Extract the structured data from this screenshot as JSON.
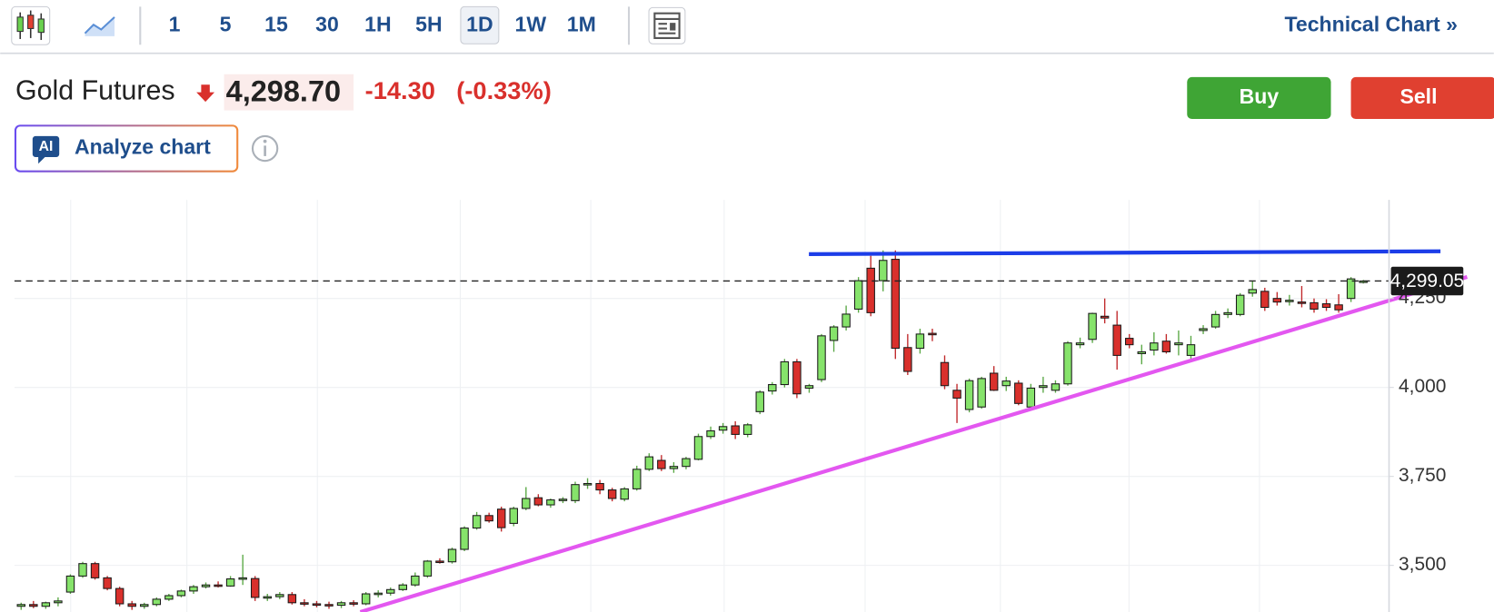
{
  "toolbar": {
    "intervals": [
      "1",
      "5",
      "15",
      "30",
      "1H",
      "5H",
      "1D",
      "1W",
      "1M"
    ],
    "link": "Technical Chart »"
  },
  "instrument": {
    "name": "Gold Futures",
    "price": "4,298.70",
    "change": "-14.30",
    "change_percent": "(-0.33%)"
  },
  "buttons": [
    "Buy",
    "Sell"
  ],
  "ai_button": {
    "badge": "AI",
    "label": "Analyze chart"
  },
  "chart_data": {
    "type": "candlestick",
    "ylim": [
      3369,
      4527
    ],
    "yticks": [
      {
        "value": 3500,
        "label": "3,500"
      },
      {
        "value": 3750,
        "label": "3,750"
      },
      {
        "value": 4000,
        "label": "4,000"
      },
      {
        "value": 4250,
        "label": "4,250"
      }
    ],
    "grid": true,
    "up_color": "#86e36b",
    "down_color": "#d9302c",
    "last_price": {
      "value": 4299.05,
      "label": "4,299.05"
    },
    "candles": [
      [
        3385,
        3395,
        3375,
        3390
      ],
      [
        3390,
        3400,
        3380,
        3385
      ],
      [
        3385,
        3398,
        3378,
        3395
      ],
      [
        3395,
        3410,
        3385,
        3400
      ],
      [
        3425,
        3475,
        3420,
        3470
      ],
      [
        3470,
        3510,
        3465,
        3505
      ],
      [
        3505,
        3510,
        3460,
        3465
      ],
      [
        3465,
        3470,
        3430,
        3435
      ],
      [
        3435,
        3440,
        3385,
        3392
      ],
      [
        3392,
        3400,
        3375,
        3385
      ],
      [
        3385,
        3395,
        3378,
        3390
      ],
      [
        3390,
        3410,
        3385,
        3405
      ],
      [
        3405,
        3420,
        3400,
        3415
      ],
      [
        3415,
        3432,
        3410,
        3428
      ],
      [
        3428,
        3445,
        3420,
        3440
      ],
      [
        3440,
        3452,
        3435,
        3445
      ],
      [
        3445,
        3455,
        3438,
        3442
      ],
      [
        3442,
        3470,
        3440,
        3462
      ],
      [
        3462,
        3530,
        3445,
        3465
      ],
      [
        3463,
        3470,
        3400,
        3410
      ],
      [
        3410,
        3420,
        3400,
        3412
      ],
      [
        3412,
        3425,
        3405,
        3418
      ],
      [
        3418,
        3425,
        3390,
        3395
      ],
      [
        3395,
        3405,
        3385,
        3392
      ],
      [
        3392,
        3400,
        3382,
        3390
      ],
      [
        3390,
        3398,
        3378,
        3388
      ],
      [
        3388,
        3400,
        3380,
        3395
      ],
      [
        3395,
        3402,
        3385,
        3392
      ],
      [
        3392,
        3425,
        3388,
        3420
      ],
      [
        3420,
        3430,
        3410,
        3422
      ],
      [
        3422,
        3438,
        3415,
        3432
      ],
      [
        3432,
        3450,
        3428,
        3445
      ],
      [
        3445,
        3480,
        3440,
        3470
      ],
      [
        3470,
        3515,
        3465,
        3512
      ],
      [
        3512,
        3520,
        3505,
        3510
      ],
      [
        3510,
        3550,
        3505,
        3545
      ],
      [
        3545,
        3610,
        3540,
        3605
      ],
      [
        3605,
        3650,
        3600,
        3640
      ],
      [
        3640,
        3648,
        3620,
        3625
      ],
      [
        3658,
        3665,
        3595,
        3606
      ],
      [
        3618,
        3665,
        3610,
        3660
      ],
      [
        3660,
        3720,
        3655,
        3688
      ],
      [
        3690,
        3700,
        3666,
        3670
      ],
      [
        3670,
        3688,
        3662,
        3684
      ],
      [
        3682,
        3692,
        3675,
        3686
      ],
      [
        3682,
        3735,
        3675,
        3727
      ],
      [
        3727,
        3745,
        3715,
        3730
      ],
      [
        3730,
        3740,
        3700,
        3712
      ],
      [
        3712,
        3718,
        3680,
        3688
      ],
      [
        3686,
        3720,
        3680,
        3715
      ],
      [
        3715,
        3780,
        3710,
        3770
      ],
      [
        3770,
        3815,
        3765,
        3805
      ],
      [
        3795,
        3810,
        3765,
        3772
      ],
      [
        3772,
        3790,
        3760,
        3778
      ],
      [
        3778,
        3805,
        3770,
        3800
      ],
      [
        3798,
        3870,
        3795,
        3862
      ],
      [
        3862,
        3890,
        3855,
        3878
      ],
      [
        3880,
        3900,
        3870,
        3890
      ],
      [
        3892,
        3905,
        3855,
        3868
      ],
      [
        3868,
        3900,
        3860,
        3895
      ],
      [
        3932,
        3992,
        3925,
        3987
      ],
      [
        3990,
        4015,
        3980,
        4008
      ],
      [
        4008,
        4080,
        4000,
        4072
      ],
      [
        4072,
        4080,
        3970,
        3982
      ],
      [
        3998,
        4010,
        3985,
        4005
      ],
      [
        4022,
        4150,
        4015,
        4145
      ],
      [
        4132,
        4175,
        4100,
        4170
      ],
      [
        4170,
        4230,
        4160,
        4206
      ],
      [
        4220,
        4310,
        4210,
        4300
      ],
      [
        4335,
        4370,
        4200,
        4210
      ],
      [
        4300,
        4385,
        4270,
        4357
      ],
      [
        4360,
        4385,
        4080,
        4110
      ],
      [
        4112,
        4150,
        4035,
        4045
      ],
      [
        4110,
        4165,
        4095,
        4150
      ],
      [
        4152,
        4165,
        4130,
        4148
      ],
      [
        4070,
        4090,
        3995,
        4005
      ],
      [
        3992,
        4010,
        3900,
        3970
      ],
      [
        3938,
        4025,
        3930,
        4019
      ],
      [
        3945,
        4030,
        3940,
        4025
      ],
      [
        4040,
        4060,
        3990,
        3992
      ],
      [
        4005,
        4030,
        3990,
        4018
      ],
      [
        4012,
        4020,
        3950,
        3955
      ],
      [
        3945,
        4010,
        3940,
        3998
      ],
      [
        4000,
        4030,
        3985,
        4005
      ],
      [
        3992,
        4020,
        3985,
        4010
      ],
      [
        4010,
        4130,
        4005,
        4125
      ],
      [
        4120,
        4140,
        4110,
        4125
      ],
      [
        4135,
        4210,
        4125,
        4208
      ],
      [
        4200,
        4250,
        4180,
        4195
      ],
      [
        4175,
        4215,
        4050,
        4090
      ],
      [
        4138,
        4150,
        4110,
        4120
      ],
      [
        4095,
        4120,
        4065,
        4100
      ],
      [
        4105,
        4155,
        4090,
        4125
      ],
      [
        4130,
        4150,
        4095,
        4100
      ],
      [
        4120,
        4160,
        4090,
        4125
      ],
      [
        4090,
        4145,
        4080,
        4120
      ],
      [
        4160,
        4175,
        4150,
        4165
      ],
      [
        4170,
        4215,
        4165,
        4205
      ],
      [
        4205,
        4222,
        4195,
        4210
      ],
      [
        4205,
        4265,
        4200,
        4259
      ],
      [
        4265,
        4300,
        4255,
        4275
      ],
      [
        4270,
        4280,
        4215,
        4225
      ],
      [
        4250,
        4268,
        4230,
        4240
      ],
      [
        4242,
        4260,
        4230,
        4245
      ],
      [
        4240,
        4285,
        4225,
        4238
      ],
      [
        4238,
        4250,
        4210,
        4220
      ],
      [
        4235,
        4248,
        4215,
        4225
      ],
      [
        4232,
        4262,
        4210,
        4218
      ],
      [
        4250,
        4310,
        4240,
        4305
      ],
      [
        4298,
        4302,
        4292,
        4299
      ]
    ]
  }
}
